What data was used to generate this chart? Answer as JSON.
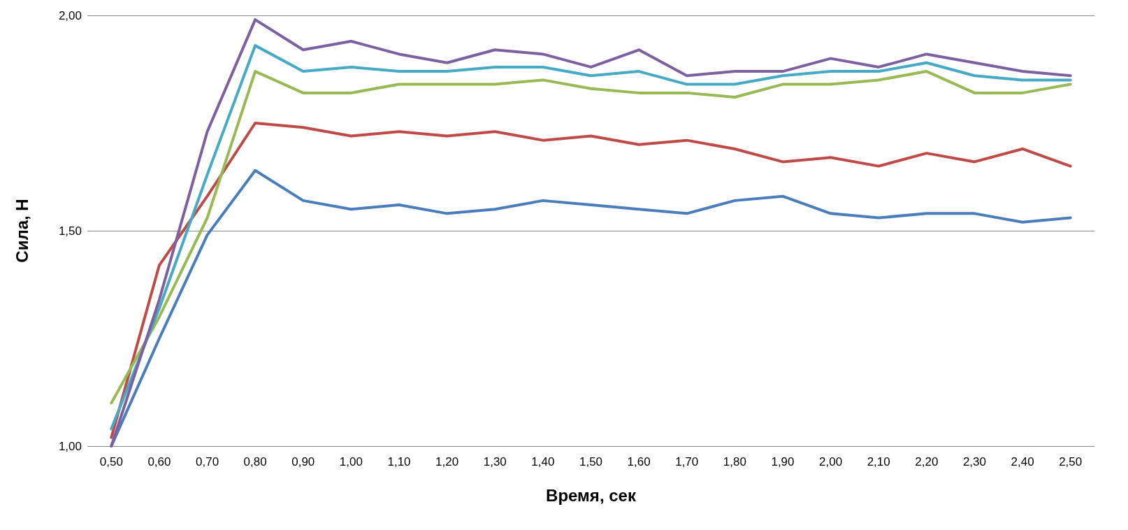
{
  "chart_data": {
    "type": "line",
    "xlabel": "Время, сек",
    "ylabel": "Сила, Н",
    "categories": [
      "0,50",
      "0,60",
      "0,70",
      "0,80",
      "0,90",
      "1,00",
      "1,10",
      "1,20",
      "1,30",
      "1,40",
      "1,50",
      "1,60",
      "1,70",
      "1,80",
      "1,90",
      "2,00",
      "2,10",
      "2,20",
      "2,30",
      "2,40",
      "2,50"
    ],
    "series": [
      {
        "color": "#4a7ebb",
        "values": [
          1.0,
          1.25,
          1.49,
          1.64,
          1.57,
          1.55,
          1.56,
          1.54,
          1.55,
          1.57,
          1.56,
          1.55,
          1.54,
          1.57,
          1.58,
          1.54,
          1.53,
          1.54,
          1.54,
          1.52,
          1.53
        ]
      },
      {
        "color": "#be4b48",
        "values": [
          1.02,
          1.42,
          1.58,
          1.75,
          1.74,
          1.72,
          1.73,
          1.72,
          1.73,
          1.71,
          1.72,
          1.7,
          1.71,
          1.69,
          1.66,
          1.67,
          1.65,
          1.68,
          1.66,
          1.69,
          1.65
        ]
      },
      {
        "color": "#98b954",
        "values": [
          1.1,
          1.3,
          1.53,
          1.87,
          1.82,
          1.82,
          1.84,
          1.84,
          1.84,
          1.85,
          1.83,
          1.82,
          1.82,
          1.81,
          1.84,
          1.84,
          1.85,
          1.87,
          1.82,
          1.82,
          1.84
        ]
      },
      {
        "color": "#46aac5",
        "values": [
          1.04,
          1.32,
          1.63,
          1.93,
          1.87,
          1.88,
          1.87,
          1.87,
          1.88,
          1.88,
          1.86,
          1.87,
          1.84,
          1.84,
          1.86,
          1.87,
          1.87,
          1.89,
          1.86,
          1.85,
          1.85
        ]
      },
      {
        "color": "#7d60a0",
        "values": [
          1.0,
          1.34,
          1.73,
          1.99,
          1.92,
          1.94,
          1.91,
          1.89,
          1.92,
          1.91,
          1.88,
          1.92,
          1.86,
          1.87,
          1.87,
          1.9,
          1.88,
          1.91,
          1.89,
          1.87,
          1.86
        ]
      }
    ],
    "ylim": [
      1.0,
      2.0
    ],
    "yticks": [
      {
        "value": 1.0,
        "label": "1,00"
      },
      {
        "value": 1.5,
        "label": "1,50"
      },
      {
        "value": 2.0,
        "label": "2,00"
      }
    ],
    "grid": "y",
    "marker": "none",
    "line_style": "solid"
  }
}
